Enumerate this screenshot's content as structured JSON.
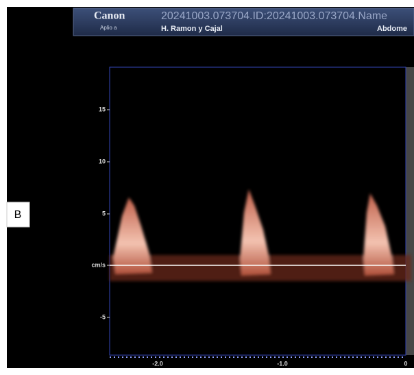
{
  "panel_label": "B",
  "header": {
    "brand": "Canon",
    "model": "Aplio a",
    "study": "20241003.073704.ID:20241003.073704.Name",
    "institution": "H. Ramon y Cajal",
    "region": "Abdome"
  },
  "doppler": {
    "y_labels": [
      "15",
      "10",
      "5",
      "cm/s",
      "-5"
    ],
    "x_labels": [
      "-2.0",
      "-1.0",
      "0"
    ]
  }
}
